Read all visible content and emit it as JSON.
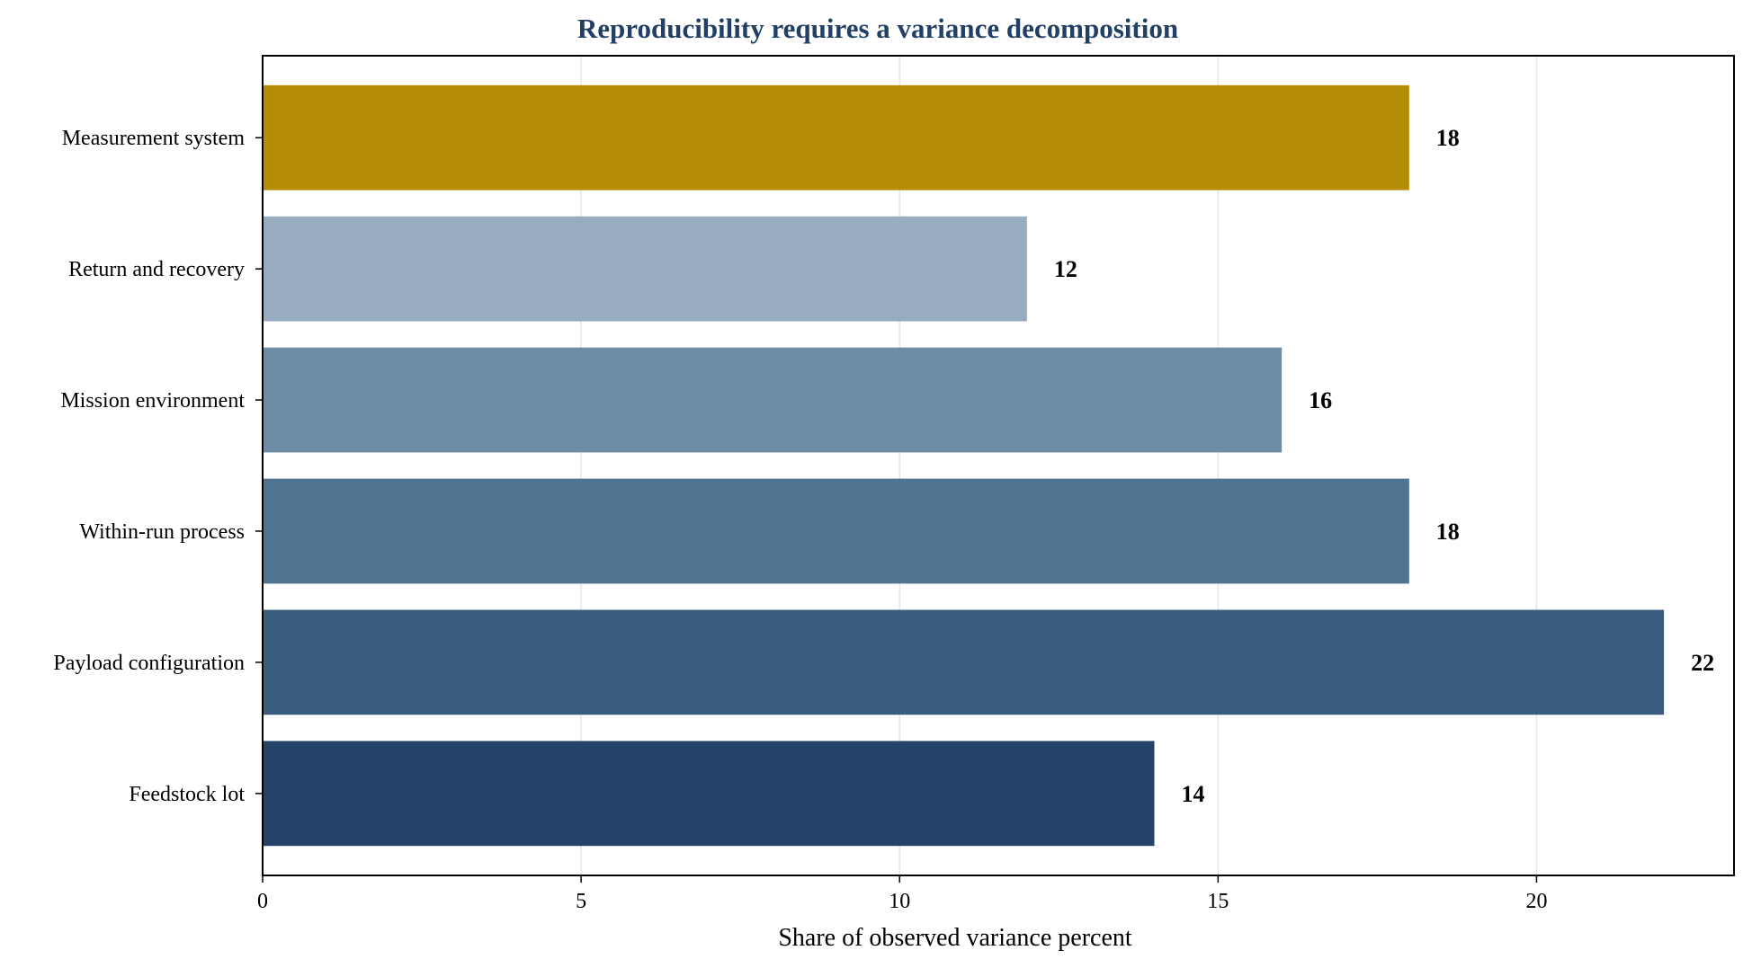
{
  "chart_data": {
    "type": "bar",
    "orientation": "horizontal",
    "title": "Reproducibility requires a variance decomposition",
    "xlabel": "Share of observed variance percent",
    "ylabel": "",
    "categories": [
      "Feedstock lot",
      "Payload configuration",
      "Within-run process",
      "Mission environment",
      "Return and recovery",
      "Measurement system"
    ],
    "values": [
      14,
      22,
      18,
      16,
      12,
      18
    ],
    "value_labels": [
      "14",
      "22",
      "18",
      "16",
      "12",
      "18"
    ],
    "colors": [
      "#213f66",
      "#35597c",
      "#4c7090",
      "#6c8aa5",
      "#95abbe",
      "#b38a00"
    ],
    "xlim": [
      0,
      23.1
    ],
    "xticks": [
      0,
      5,
      10,
      15,
      20
    ],
    "xtick_labels": [
      "0",
      "5",
      "10",
      "15",
      "20"
    ],
    "grid": "vertical",
    "legend": "none",
    "title_color": "#223f66"
  }
}
